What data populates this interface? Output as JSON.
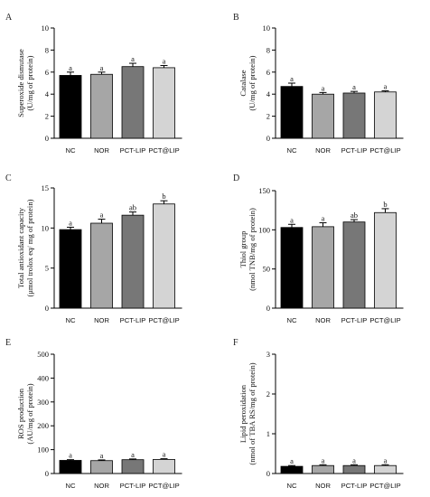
{
  "chart_data": [
    {
      "panel": "A",
      "type": "bar",
      "categories": [
        "NC",
        "NOR",
        "PCT-LIP",
        "PCT@LIP"
      ],
      "values": [
        5.7,
        5.8,
        6.5,
        6.4
      ],
      "errors": [
        0.3,
        0.2,
        0.3,
        0.2
      ],
      "letters": [
        "a",
        "a",
        "a",
        "a"
      ],
      "ylabel": [
        "Superoxide dismutase",
        "(U/mg of protein)"
      ],
      "ylim": [
        0,
        10
      ],
      "yticks": [
        0,
        2,
        4,
        6,
        8,
        10
      ]
    },
    {
      "panel": "B",
      "type": "bar",
      "categories": [
        "NC",
        "NOR",
        "PCT-LIP",
        "PCT@LIP"
      ],
      "values": [
        4.7,
        4.0,
        4.1,
        4.2
      ],
      "errors": [
        0.3,
        0.15,
        0.15,
        0.1
      ],
      "letters": [
        "a",
        "a",
        "a",
        "a"
      ],
      "ylabel": [
        "Catalase",
        "(U/mg of protein)"
      ],
      "ylim": [
        0,
        10
      ],
      "yticks": [
        0,
        2,
        4,
        6,
        8,
        10
      ]
    },
    {
      "panel": "C",
      "type": "bar",
      "categories": [
        "NC",
        "NOR",
        "PCT-LIP",
        "PCT@LIP"
      ],
      "values": [
        9.8,
        10.6,
        11.6,
        13.0
      ],
      "errors": [
        0.3,
        0.5,
        0.4,
        0.4
      ],
      "letters": [
        "a",
        "a",
        "ab",
        "b"
      ],
      "ylabel": [
        "Total antioxidant capacity",
        "(μmol trolox eq/ mg of protein)"
      ],
      "ylim": [
        0,
        15
      ],
      "yticks": [
        0,
        5,
        10,
        15
      ]
    },
    {
      "panel": "D",
      "type": "bar",
      "categories": [
        "NC",
        "NOR",
        "PCT-LIP",
        "PCT@LIP"
      ],
      "values": [
        103,
        104,
        110,
        122
      ],
      "errors": [
        4,
        5,
        3,
        5
      ],
      "letters": [
        "a",
        "a",
        "ab",
        "b"
      ],
      "ylabel": [
        "Thiol group",
        "(nmol TNB/mg of protein)"
      ],
      "ylim": [
        0,
        150
      ],
      "yticks": [
        0,
        50,
        100,
        150
      ]
    },
    {
      "panel": "E",
      "type": "bar",
      "categories": [
        "NC",
        "NOR",
        "PCT-LIP",
        "PCT@LIP"
      ],
      "values": [
        55,
        54,
        58,
        59
      ],
      "errors": [
        3,
        3,
        3,
        3
      ],
      "letters": [
        "a",
        "a",
        "a",
        "a"
      ],
      "ylabel": [
        "ROS production",
        "(AU/mg of protein)"
      ],
      "ylim": [
        0,
        500
      ],
      "yticks": [
        0,
        100,
        200,
        300,
        400,
        500
      ]
    },
    {
      "panel": "F",
      "type": "bar",
      "categories": [
        "NC",
        "NOR",
        "PCT-LIP",
        "PCT@LIP"
      ],
      "values": [
        0.18,
        0.2,
        0.2,
        0.2
      ],
      "errors": [
        0.02,
        0.02,
        0.02,
        0.02
      ],
      "letters": [
        "a",
        "a",
        "a",
        "a"
      ],
      "ylabel": [
        "Lipid peroxidation",
        "(nmol of TBA RS/mg of protein)"
      ],
      "ylim": [
        0,
        3
      ],
      "yticks": [
        0,
        1,
        2,
        3
      ]
    }
  ],
  "colors": {
    "bars": [
      "#000000",
      "#a6a6a6",
      "#777777",
      "#d4d4d4"
    ],
    "axis": "#000000"
  }
}
